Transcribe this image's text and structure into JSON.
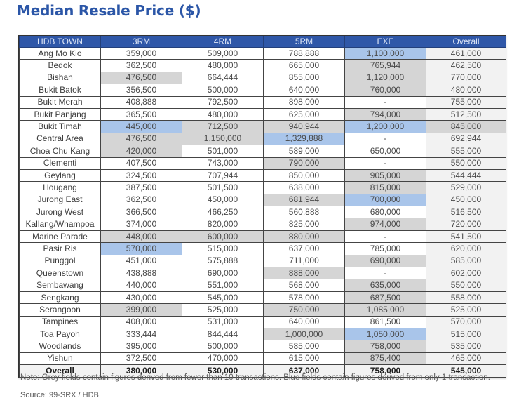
{
  "title": "Median Resale Price ($)",
  "table": {
    "headers": [
      "HDB TOWN",
      "3RM",
      "4RM",
      "5RM",
      "EXE",
      "Overall"
    ],
    "rows": [
      {
        "town": "Ang Mo Kio",
        "v": [
          "359,000",
          "509,000",
          "788,888",
          "1,100,000",
          "461,000"
        ],
        "s": [
          "",
          "",
          "",
          "blue",
          ""
        ]
      },
      {
        "town": "Bedok",
        "v": [
          "362,500",
          "480,000",
          "665,000",
          "765,944",
          "462,500"
        ],
        "s": [
          "",
          "",
          "",
          "grey",
          ""
        ]
      },
      {
        "town": "Bishan",
        "v": [
          "476,500",
          "664,444",
          "855,000",
          "1,120,000",
          "770,000"
        ],
        "s": [
          "grey",
          "",
          "",
          "grey",
          ""
        ]
      },
      {
        "town": "Bukit Batok",
        "v": [
          "356,500",
          "500,000",
          "640,000",
          "760,000",
          "480,000"
        ],
        "s": [
          "",
          "",
          "",
          "grey",
          ""
        ]
      },
      {
        "town": "Bukit Merah",
        "v": [
          "408,888",
          "792,500",
          "898,000",
          "-",
          "755,000"
        ],
        "s": [
          "",
          "",
          "",
          "",
          ""
        ]
      },
      {
        "town": "Bukit Panjang",
        "v": [
          "365,500",
          "480,000",
          "625,000",
          "794,000",
          "512,500"
        ],
        "s": [
          "",
          "",
          "",
          "grey",
          ""
        ]
      },
      {
        "town": "Bukit Timah",
        "v": [
          "445,000",
          "712,500",
          "940,944",
          "1,200,000",
          "845,000"
        ],
        "s": [
          "blue",
          "grey",
          "grey",
          "blue",
          "grey"
        ]
      },
      {
        "town": "Central Area",
        "v": [
          "476,500",
          "1,150,000",
          "1,329,888",
          "-",
          "692,944"
        ],
        "s": [
          "grey",
          "grey",
          "blue",
          "",
          ""
        ]
      },
      {
        "town": "Choa Chu Kang",
        "v": [
          "420,000",
          "501,000",
          "589,000",
          "650,000",
          "555,000"
        ],
        "s": [
          "grey",
          "",
          "",
          "",
          ""
        ]
      },
      {
        "town": "Clementi",
        "v": [
          "407,500",
          "743,000",
          "790,000",
          "-",
          "550,000"
        ],
        "s": [
          "",
          "",
          "grey",
          "",
          ""
        ]
      },
      {
        "town": "Geylang",
        "v": [
          "324,500",
          "707,944",
          "850,000",
          "905,000",
          "544,444"
        ],
        "s": [
          "",
          "",
          "",
          "grey",
          ""
        ]
      },
      {
        "town": "Hougang",
        "v": [
          "387,500",
          "501,500",
          "638,000",
          "815,000",
          "529,000"
        ],
        "s": [
          "",
          "",
          "",
          "grey",
          ""
        ]
      },
      {
        "town": "Jurong East",
        "v": [
          "362,500",
          "450,000",
          "681,944",
          "700,000",
          "450,000"
        ],
        "s": [
          "",
          "",
          "grey",
          "blue",
          ""
        ]
      },
      {
        "town": "Jurong West",
        "v": [
          "366,500",
          "466,250",
          "560,888",
          "680,000",
          "516,500"
        ],
        "s": [
          "",
          "",
          "",
          "",
          ""
        ]
      },
      {
        "town": "Kallang/Whampoa",
        "v": [
          "374,000",
          "820,000",
          "825,000",
          "974,000",
          "720,000"
        ],
        "s": [
          "",
          "",
          "",
          "grey",
          ""
        ]
      },
      {
        "town": "Marine Parade",
        "v": [
          "448,000",
          "600,000",
          "880,000",
          "-",
          "541,500"
        ],
        "s": [
          "grey",
          "grey",
          "grey",
          "",
          ""
        ]
      },
      {
        "town": "Pasir Ris",
        "v": [
          "570,000",
          "515,000",
          "637,000",
          "785,000",
          "620,000"
        ],
        "s": [
          "blue",
          "",
          "",
          "",
          ""
        ]
      },
      {
        "town": "Punggol",
        "v": [
          "451,000",
          "575,888",
          "711,000",
          "690,000",
          "585,000"
        ],
        "s": [
          "",
          "",
          "",
          "grey",
          ""
        ]
      },
      {
        "town": "Queenstown",
        "v": [
          "438,888",
          "690,000",
          "888,000",
          "-",
          "602,000"
        ],
        "s": [
          "",
          "",
          "grey",
          "",
          ""
        ]
      },
      {
        "town": "Sembawang",
        "v": [
          "440,000",
          "551,000",
          "568,000",
          "635,000",
          "550,000"
        ],
        "s": [
          "",
          "",
          "",
          "grey",
          ""
        ]
      },
      {
        "town": "Sengkang",
        "v": [
          "430,000",
          "545,000",
          "578,000",
          "687,500",
          "558,000"
        ],
        "s": [
          "",
          "",
          "",
          "grey",
          ""
        ]
      },
      {
        "town": "Serangoon",
        "v": [
          "399,000",
          "525,000",
          "750,000",
          "1,085,000",
          "525,000"
        ],
        "s": [
          "grey",
          "",
          "grey",
          "grey",
          ""
        ]
      },
      {
        "town": "Tampines",
        "v": [
          "408,000",
          "531,000",
          "640,000",
          "861,500",
          "570,000"
        ],
        "s": [
          "",
          "",
          "",
          "",
          ""
        ]
      },
      {
        "town": "Toa Payoh",
        "v": [
          "333,444",
          "844,444",
          "1,000,000",
          "1,050,000",
          "515,000"
        ],
        "s": [
          "",
          "",
          "grey",
          "blue",
          ""
        ]
      },
      {
        "town": "Woodlands",
        "v": [
          "395,000",
          "500,000",
          "585,000",
          "758,000",
          "535,000"
        ],
        "s": [
          "",
          "",
          "",
          "grey",
          ""
        ]
      },
      {
        "town": "Yishun",
        "v": [
          "372,500",
          "470,000",
          "615,000",
          "875,400",
          "465,000"
        ],
        "s": [
          "",
          "",
          "",
          "grey",
          ""
        ]
      }
    ],
    "total": {
      "town": "Overall",
      "v": [
        "380,000",
        "530,000",
        "637,000",
        "758,000",
        "545,000"
      ]
    }
  },
  "colors": {
    "header_bg": "#2f57a8",
    "title": "#2b56a7",
    "grey_cell": "#d5d5d5",
    "blue_cell": "#a9c5ea"
  },
  "note": "Note: Grey fields contain figures derived from fewer than 10 transactions. Blue fields contain figures derived from only 1 transaction.",
  "source": "Source: 99-SRX / HDB"
}
